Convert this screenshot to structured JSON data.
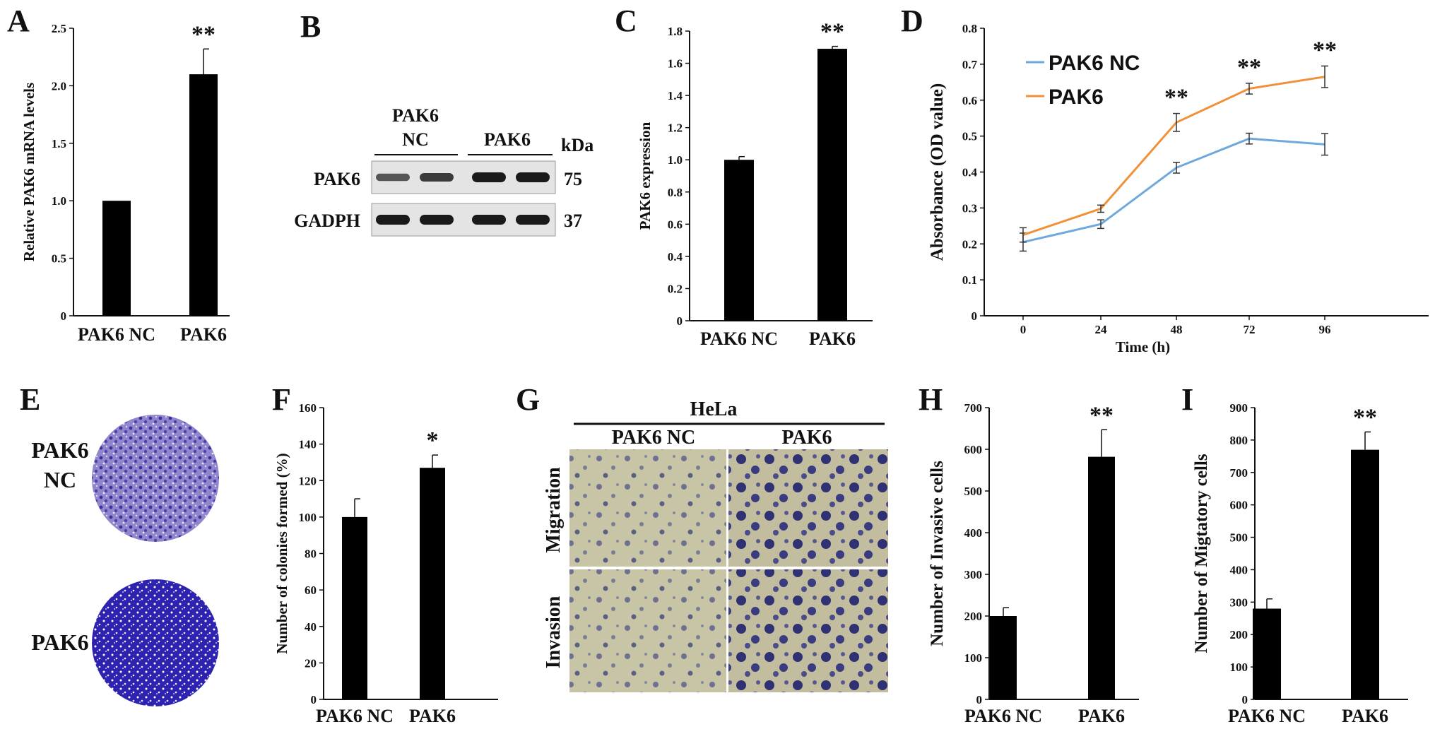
{
  "panels": {
    "A": "A",
    "B": "B",
    "C": "C",
    "D": "D",
    "E": "E",
    "F": "F",
    "G": "G",
    "H": "H",
    "I": "I"
  },
  "colors": {
    "bar": "#000000",
    "series_nc": "#6fa8dc",
    "series_pak6": "#f0913a",
    "wb_band": "#1a1a1a",
    "stain_light": "#7a6fc0",
    "stain_dark": "#2b1fa8",
    "field_bg": "#c9c4a4",
    "cell_dark": "#2a2a7a"
  },
  "chart_data": [
    {
      "id": "A",
      "type": "bar",
      "categories": [
        "PAK6 NC",
        "PAK6"
      ],
      "values": [
        1.0,
        2.1
      ],
      "errors": [
        0,
        0.22
      ],
      "sig": [
        "",
        "**"
      ],
      "ylabel": "Relative PAK6 mRNA levels",
      "ylim": [
        0,
        2.5
      ],
      "yticks": [
        0,
        0.5,
        1.0,
        1.5,
        2.0,
        2.5
      ],
      "ytick_labels": [
        "0",
        "0.5",
        "1.0",
        "1.5",
        "2.0",
        "2.5"
      ]
    },
    {
      "id": "C",
      "type": "bar",
      "categories": [
        "PAK6 NC",
        "PAK6"
      ],
      "values": [
        1.0,
        1.69
      ],
      "errors": [
        0.02,
        0.015
      ],
      "sig": [
        "",
        "**"
      ],
      "ylabel": "PAK6 expression",
      "ylim": [
        0,
        1.8
      ],
      "yticks": [
        0,
        0.2,
        0.4,
        0.6,
        0.8,
        1.0,
        1.2,
        1.4,
        1.6,
        1.8
      ],
      "ytick_labels": [
        "0",
        "0.2",
        "0.4",
        "0.6",
        "0.8",
        "1.0",
        "1.2",
        "1.4",
        "1.6",
        "1.8"
      ]
    },
    {
      "id": "D",
      "type": "line",
      "x": [
        0,
        24,
        48,
        72,
        96
      ],
      "xtick_labels": [
        "0",
        "24",
        "48",
        "72",
        "96"
      ],
      "series": [
        {
          "name": "PAK6 NC",
          "values": [
            0.205,
            0.255,
            0.412,
            0.493,
            0.477
          ],
          "errors": [
            0.025,
            0.012,
            0.015,
            0.015,
            0.03
          ]
        },
        {
          "name": "PAK6",
          "values": [
            0.225,
            0.298,
            0.538,
            0.632,
            0.665
          ],
          "errors": [
            0.02,
            0.01,
            0.025,
            0.015,
            0.03
          ]
        }
      ],
      "sig": [
        "",
        "",
        "**",
        "**",
        "**"
      ],
      "xlabel": "Time (h)",
      "ylabel": "Absorbance (OD value)",
      "ylim": [
        0,
        0.8
      ],
      "yticks": [
        0,
        0.1,
        0.2,
        0.3,
        0.4,
        0.5,
        0.6,
        0.7,
        0.8
      ],
      "ytick_labels": [
        "0",
        "0.1",
        "0.2",
        "0.3",
        "0.4",
        "0.5",
        "0.6",
        "0.7",
        "0.8"
      ],
      "legend": "top-left"
    },
    {
      "id": "F",
      "type": "bar",
      "categories": [
        "PAK6 NC",
        "PAK6"
      ],
      "values": [
        100,
        127
      ],
      "errors": [
        10,
        7
      ],
      "sig": [
        "",
        "*"
      ],
      "ylabel": "Number of colonies formed (%)",
      "ylim": [
        0,
        160
      ],
      "yticks": [
        0,
        20,
        40,
        60,
        80,
        100,
        120,
        140,
        160
      ],
      "ytick_labels": [
        "0",
        "20",
        "40",
        "60",
        "80",
        "100",
        "120",
        "140",
        "160"
      ]
    },
    {
      "id": "H",
      "type": "bar",
      "categories": [
        "PAK6 NC",
        "PAK6"
      ],
      "values": [
        200,
        582
      ],
      "errors": [
        20,
        65
      ],
      "sig": [
        "",
        "**"
      ],
      "ylabel": "Number of Invasive cells",
      "ylim": [
        0,
        700
      ],
      "yticks": [
        0,
        100,
        200,
        300,
        400,
        500,
        600,
        700
      ],
      "ytick_labels": [
        "0",
        "100",
        "200",
        "300",
        "400",
        "500",
        "600",
        "700"
      ]
    },
    {
      "id": "I",
      "type": "bar",
      "categories": [
        "PAK6 NC",
        "PAK6"
      ],
      "values": [
        280,
        770
      ],
      "errors": [
        30,
        55
      ],
      "sig": [
        "",
        "**"
      ],
      "ylabel": "Number of Migtatory cells",
      "ylim": [
        0,
        900
      ],
      "yticks": [
        0,
        100,
        200,
        300,
        400,
        500,
        600,
        700,
        800,
        900
      ],
      "ytick_labels": [
        "0",
        "100",
        "200",
        "300",
        "400",
        "500",
        "600",
        "700",
        "800",
        "900"
      ]
    }
  ],
  "western_blot": {
    "group_nc_line1": "PAK6",
    "group_nc_line2": "NC",
    "group_pak6": "PAK6",
    "unit": "kDa",
    "rows": [
      {
        "protein": "PAK6",
        "kda": "75",
        "intensity": [
          0.55,
          0.75,
          1.0,
          1.0
        ]
      },
      {
        "protein": "GADPH",
        "kda": "37",
        "intensity": [
          1.0,
          1.0,
          1.0,
          1.0
        ]
      }
    ]
  },
  "colony": {
    "label_nc_line1": "PAK6",
    "label_nc_line2": "NC",
    "label_pak6": "PAK6"
  },
  "transwell": {
    "cell_line": "HeLa",
    "col_nc": "PAK6 NC",
    "col_pak6": "PAK6",
    "row_migration": "Migration",
    "row_invasion": "Invasion"
  }
}
